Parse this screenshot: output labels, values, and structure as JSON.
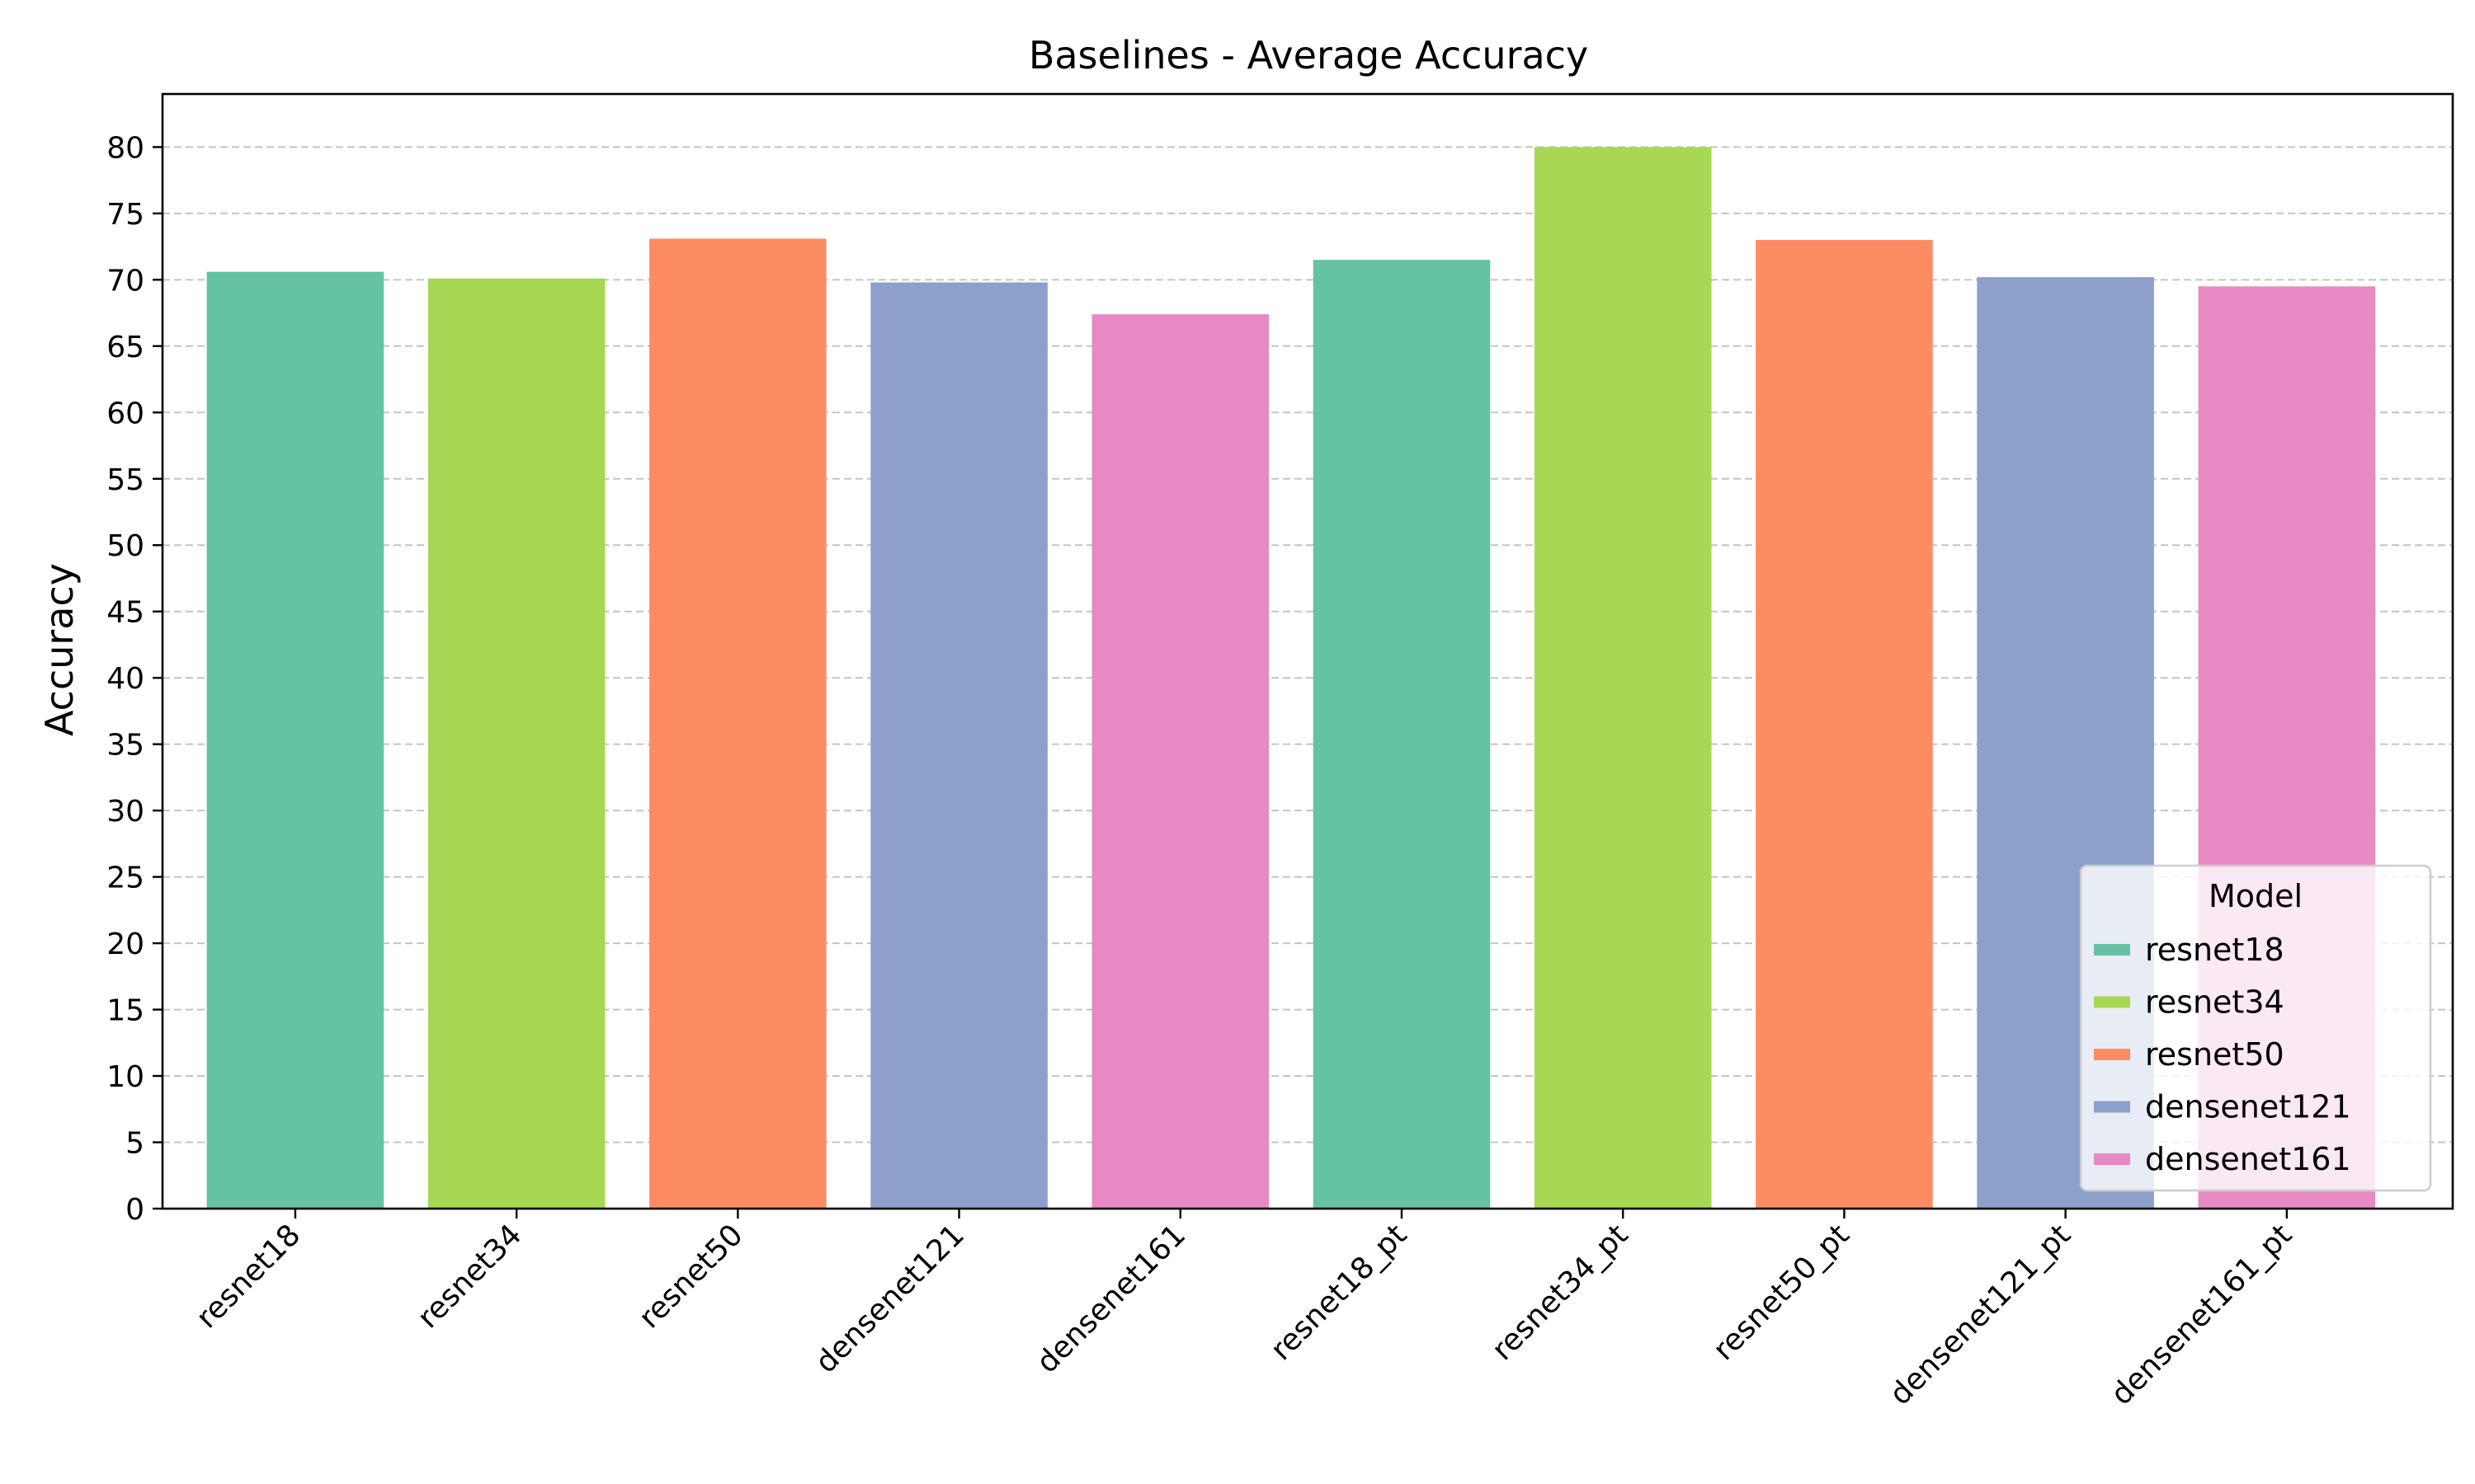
{
  "chart_data": {
    "type": "bar",
    "title": "Baselines - Average Accuracy",
    "xlabel": "",
    "ylabel": "Accuracy",
    "categories": [
      "resnet18",
      "resnet34",
      "resnet50",
      "densenet121",
      "densenet161",
      "resnet18_pt",
      "resnet34_pt",
      "resnet50_pt",
      "densenet121_pt",
      "densenet161_pt"
    ],
    "values": [
      70.6,
      70.1,
      73.1,
      69.8,
      67.4,
      71.5,
      80.0,
      73.0,
      70.2,
      69.5
    ],
    "bar_model": [
      "resnet18",
      "resnet34",
      "resnet50",
      "densenet121",
      "densenet161",
      "resnet18",
      "resnet34",
      "resnet50",
      "densenet121",
      "densenet161"
    ],
    "ylim": [
      0,
      84
    ],
    "yticks": [
      0,
      5,
      10,
      15,
      20,
      25,
      30,
      35,
      40,
      45,
      50,
      55,
      60,
      65,
      70,
      75,
      80
    ],
    "grid": "y-dashed",
    "legend": {
      "title": "Model",
      "placement": "lower-right",
      "entries": [
        {
          "name": "resnet18",
          "color": "#66c2a5"
        },
        {
          "name": "resnet34",
          "color": "#a6d854"
        },
        {
          "name": "resnet50",
          "color": "#fc8d62"
        },
        {
          "name": "densenet121",
          "color": "#8da0cb"
        },
        {
          "name": "densenet161",
          "color": "#e78ac3"
        }
      ]
    }
  }
}
